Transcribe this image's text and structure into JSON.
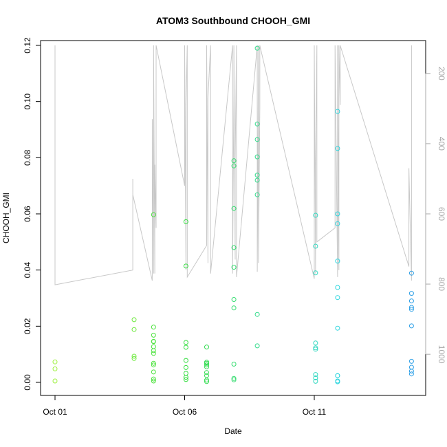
{
  "chart_data": {
    "type": "scatter",
    "title": "ATOM3 Southbound CHOOH_GMI",
    "xlabel": "Date",
    "ylabel": "CHOOH_GMI",
    "x_ticks": [
      "Oct 01",
      "Oct 06",
      "Oct 11"
    ],
    "x_tick_positions": [
      0,
      5,
      10
    ],
    "xlim": [
      0,
      14
    ],
    "ylim": [
      0,
      0.12
    ],
    "y_ticks": [
      0.0,
      0.02,
      0.04,
      0.06,
      0.08,
      0.1,
      0.12
    ],
    "y_tick_labels": [
      "0.00",
      "0.02",
      "0.04",
      "0.06",
      "0.08",
      "0.10",
      "0.12"
    ],
    "secondary_axis": {
      "label": "",
      "ticks": [
        200,
        400,
        600,
        800,
        1000
      ],
      "tick_labels": [
        "200",
        "400",
        "600",
        "800",
        "1000"
      ],
      "range_top": 120,
      "range_bottom": 1080,
      "reversed": true,
      "color": "#a9a9a9"
    },
    "points": [
      {
        "x": 0.0,
        "y": 0.0073,
        "color": "#9cf03c"
      },
      {
        "x": 0.0,
        "y": 0.0048,
        "color": "#9cf03c"
      },
      {
        "x": 0.0,
        "y": 0.0005,
        "color": "#9cf03c"
      },
      {
        "x": 3.05,
        "y": 0.0223,
        "color": "#6be83a"
      },
      {
        "x": 3.05,
        "y": 0.0188,
        "color": "#6be83a"
      },
      {
        "x": 3.05,
        "y": 0.0093,
        "color": "#6be83a"
      },
      {
        "x": 3.05,
        "y": 0.0085,
        "color": "#6be83a"
      },
      {
        "x": 3.8,
        "y": 0.0597,
        "color": "#4ce23d"
      },
      {
        "x": 3.8,
        "y": 0.0197,
        "color": "#4ce23d"
      },
      {
        "x": 3.8,
        "y": 0.0168,
        "color": "#4ce23d"
      },
      {
        "x": 3.8,
        "y": 0.0146,
        "color": "#4ce23d"
      },
      {
        "x": 3.8,
        "y": 0.0145,
        "color": "#4ce23d"
      },
      {
        "x": 3.8,
        "y": 0.0127,
        "color": "#4ce23d"
      },
      {
        "x": 3.8,
        "y": 0.0113,
        "color": "#4ce23d"
      },
      {
        "x": 3.8,
        "y": 0.0103,
        "color": "#4ce23d"
      },
      {
        "x": 3.8,
        "y": 0.0068,
        "color": "#4ce23d"
      },
      {
        "x": 3.8,
        "y": 0.0062,
        "color": "#4ce23d"
      },
      {
        "x": 3.8,
        "y": 0.0037,
        "color": "#4ce23d"
      },
      {
        "x": 3.8,
        "y": 0.0012,
        "color": "#4ce23d"
      },
      {
        "x": 3.8,
        "y": 0.0005,
        "color": "#4ce23d"
      },
      {
        "x": 5.05,
        "y": 0.0572,
        "color": "#37de42"
      },
      {
        "x": 5.05,
        "y": 0.0414,
        "color": "#37de42"
      },
      {
        "x": 5.05,
        "y": 0.0142,
        "color": "#37de42"
      },
      {
        "x": 5.05,
        "y": 0.0125,
        "color": "#37de42"
      },
      {
        "x": 5.05,
        "y": 0.0078,
        "color": "#37de42"
      },
      {
        "x": 5.05,
        "y": 0.0053,
        "color": "#37de42"
      },
      {
        "x": 5.05,
        "y": 0.0032,
        "color": "#37de42"
      },
      {
        "x": 5.05,
        "y": 0.0018,
        "color": "#37de42"
      },
      {
        "x": 5.05,
        "y": 0.001,
        "color": "#37de42"
      },
      {
        "x": 5.85,
        "y": 0.0126,
        "color": "#34dc52"
      },
      {
        "x": 5.85,
        "y": 0.0072,
        "color": "#34dc52"
      },
      {
        "x": 5.85,
        "y": 0.0068,
        "color": "#34dc52"
      },
      {
        "x": 5.85,
        "y": 0.0062,
        "color": "#34dc52"
      },
      {
        "x": 5.85,
        "y": 0.0055,
        "color": "#34dc52"
      },
      {
        "x": 5.85,
        "y": 0.0035,
        "color": "#34dc52"
      },
      {
        "x": 5.85,
        "y": 0.0024,
        "color": "#34dc52"
      },
      {
        "x": 5.85,
        "y": 0.0008,
        "color": "#34dc52"
      },
      {
        "x": 5.85,
        "y": 0.0003,
        "color": "#34dc52"
      },
      {
        "x": 6.9,
        "y": 0.0789,
        "color": "#33dc6e"
      },
      {
        "x": 6.9,
        "y": 0.0771,
        "color": "#33dc6e"
      },
      {
        "x": 6.9,
        "y": 0.0619,
        "color": "#33dc6e"
      },
      {
        "x": 6.9,
        "y": 0.048,
        "color": "#33dc6e"
      },
      {
        "x": 6.9,
        "y": 0.041,
        "color": "#33dc6e"
      },
      {
        "x": 6.9,
        "y": 0.0295,
        "color": "#33dc6e"
      },
      {
        "x": 6.9,
        "y": 0.0265,
        "color": "#33dc6e"
      },
      {
        "x": 6.9,
        "y": 0.0065,
        "color": "#33dc6e"
      },
      {
        "x": 6.9,
        "y": 0.0014,
        "color": "#33dc6e"
      },
      {
        "x": 6.9,
        "y": 0.0009,
        "color": "#33dc6e"
      },
      {
        "x": 7.8,
        "y": 0.119,
        "color": "#30db8a"
      },
      {
        "x": 7.8,
        "y": 0.092,
        "color": "#30db8a"
      },
      {
        "x": 7.8,
        "y": 0.0865,
        "color": "#30db8a"
      },
      {
        "x": 7.8,
        "y": 0.0803,
        "color": "#30db8a"
      },
      {
        "x": 7.8,
        "y": 0.0738,
        "color": "#30db8a"
      },
      {
        "x": 7.8,
        "y": 0.072,
        "color": "#30db8a"
      },
      {
        "x": 7.8,
        "y": 0.0668,
        "color": "#30db8a"
      },
      {
        "x": 7.8,
        "y": 0.0242,
        "color": "#30db8a"
      },
      {
        "x": 7.8,
        "y": 0.013,
        "color": "#30db8a"
      },
      {
        "x": 10.05,
        "y": 0.0595,
        "color": "#31d8c0"
      },
      {
        "x": 10.05,
        "y": 0.0485,
        "color": "#31d8c0"
      },
      {
        "x": 10.05,
        "y": 0.039,
        "color": "#31d8c0"
      },
      {
        "x": 10.05,
        "y": 0.014,
        "color": "#31d8c0"
      },
      {
        "x": 10.05,
        "y": 0.0123,
        "color": "#31d8c0"
      },
      {
        "x": 10.05,
        "y": 0.0118,
        "color": "#31d8c0"
      },
      {
        "x": 10.05,
        "y": 0.0028,
        "color": "#31d8c0"
      },
      {
        "x": 10.05,
        "y": 0.0016,
        "color": "#31d8c0"
      },
      {
        "x": 10.05,
        "y": 0.0004,
        "color": "#31d8c0"
      },
      {
        "x": 10.9,
        "y": 0.0965,
        "color": "#2ed6de"
      },
      {
        "x": 10.9,
        "y": 0.0833,
        "color": "#2ed6de"
      },
      {
        "x": 10.9,
        "y": 0.06,
        "color": "#2ed6de"
      },
      {
        "x": 10.9,
        "y": 0.0565,
        "color": "#2ed6de"
      },
      {
        "x": 10.9,
        "y": 0.0432,
        "color": "#2ed6de"
      },
      {
        "x": 10.9,
        "y": 0.0338,
        "color": "#2ed6de"
      },
      {
        "x": 10.9,
        "y": 0.0302,
        "color": "#2ed6de"
      },
      {
        "x": 10.9,
        "y": 0.0193,
        "color": "#2ed6de"
      },
      {
        "x": 10.9,
        "y": 0.0024,
        "color": "#2ed6de"
      },
      {
        "x": 10.9,
        "y": 0.0024,
        "color": "#2ed6de"
      },
      {
        "x": 10.9,
        "y": 0.0005,
        "color": "#2ed6de"
      },
      {
        "x": 10.9,
        "y": 0.0002,
        "color": "#2ed6de"
      },
      {
        "x": 13.75,
        "y": 0.0389,
        "color": "#2a9ee6"
      },
      {
        "x": 13.75,
        "y": 0.0317,
        "color": "#2a9ee6"
      },
      {
        "x": 13.75,
        "y": 0.029,
        "color": "#2a9ee6"
      },
      {
        "x": 13.75,
        "y": 0.0267,
        "color": "#2a9ee6"
      },
      {
        "x": 13.75,
        "y": 0.026,
        "color": "#2a9ee6"
      },
      {
        "x": 13.75,
        "y": 0.0201,
        "color": "#2a9ee6"
      },
      {
        "x": 13.75,
        "y": 0.0075,
        "color": "#2a9ee6"
      },
      {
        "x": 13.75,
        "y": 0.0054,
        "color": "#2a9ee6"
      },
      {
        "x": 13.75,
        "y": 0.004,
        "color": "#2a9ee6"
      },
      {
        "x": 13.75,
        "y": 0.003,
        "color": "#2a9ee6"
      }
    ],
    "pressure_line": {
      "color": "#c8c8c8",
      "x": [
        0.0,
        0.0,
        3.0,
        3.0,
        3.0,
        3.75,
        3.75,
        3.8,
        3.8,
        3.85,
        3.85,
        3.9,
        3.9,
        5.0,
        5.0,
        5.05,
        5.05,
        5.1,
        5.1,
        5.85,
        5.85,
        5.9,
        5.9,
        6.0,
        6.0,
        6.85,
        6.85,
        6.9,
        6.9,
        6.95,
        6.95,
        7.0,
        7.0,
        7.8,
        7.8,
        7.85,
        7.85,
        7.9,
        7.9,
        10.0,
        10.0,
        10.05,
        10.05,
        10.1,
        10.1,
        10.8,
        10.8,
        10.9,
        10.9,
        10.95,
        10.95,
        11.0,
        11.0,
        13.65,
        13.65,
        13.75,
        13.75
      ],
      "p": [
        120,
        802,
        760,
        500,
        545,
        790,
        330,
        770,
        120,
        770,
        460,
        640,
        120,
        520,
        120,
        760,
        290,
        120,
        780,
        690,
        120,
        740,
        270,
        120,
        770,
        120,
        770,
        250,
        120,
        730,
        440,
        120,
        780,
        120,
        765,
        120,
        740,
        300,
        120,
        785,
        120,
        770,
        470,
        120,
        680,
        640,
        120,
        780,
        120,
        760,
        120,
        290,
        120,
        750,
        470,
        790,
        120
      ]
    }
  }
}
